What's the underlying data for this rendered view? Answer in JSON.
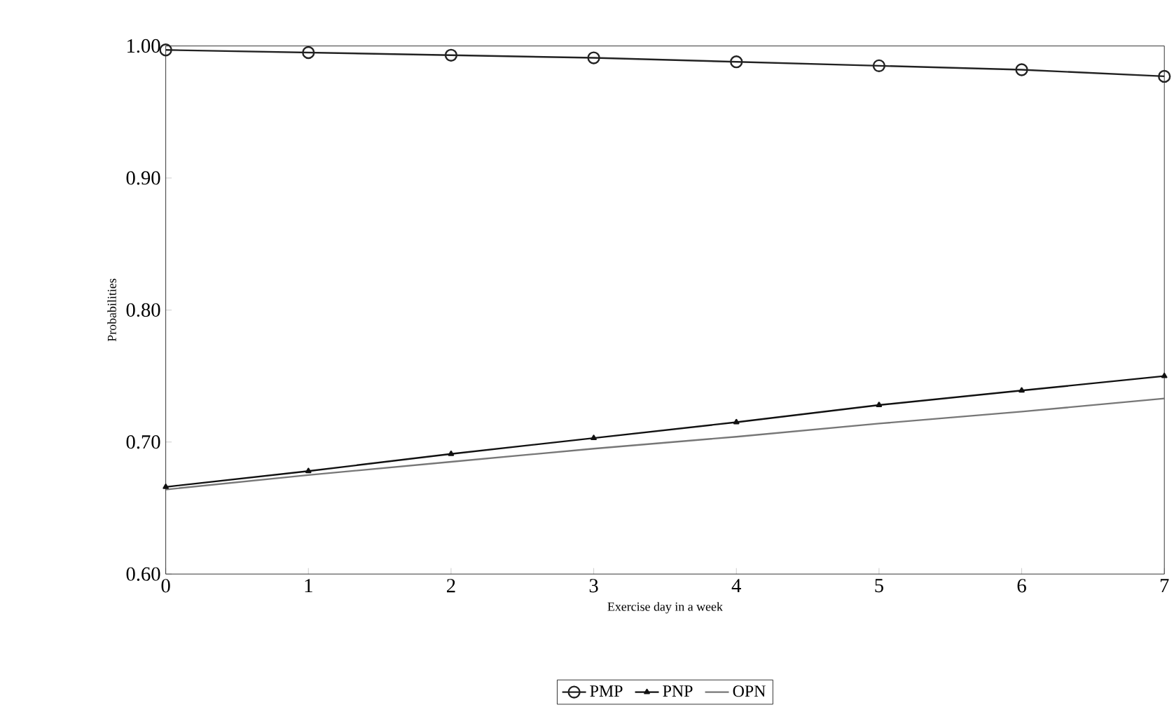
{
  "chart_data": {
    "type": "line",
    "xlabel": "Exercise day in a week",
    "ylabel": "Probabilities",
    "x": [
      0,
      1,
      2,
      3,
      4,
      5,
      6,
      7
    ],
    "series": [
      {
        "name": "PMP",
        "color": "#222222",
        "marker": "circle",
        "values": [
          0.997,
          0.995,
          0.993,
          0.991,
          0.988,
          0.985,
          0.982,
          0.977
        ]
      },
      {
        "name": "PNP",
        "color": "#111111",
        "marker": "triangle",
        "values": [
          0.666,
          0.678,
          0.691,
          0.703,
          0.715,
          0.728,
          0.739,
          0.75
        ]
      },
      {
        "name": "OPN",
        "color": "#777777",
        "marker": "none",
        "values": [
          0.664,
          0.675,
          0.685,
          0.695,
          0.704,
          0.714,
          0.723,
          0.733
        ]
      }
    ],
    "xlim": [
      0,
      7
    ],
    "xticks": [
      0,
      1,
      2,
      3,
      4,
      5,
      6,
      7
    ],
    "ylim": [
      0.6,
      1.0
    ],
    "yticks": [
      {
        "value": 0.6,
        "label": "0.60"
      },
      {
        "value": 0.7,
        "label": "0.70"
      },
      {
        "value": 0.8,
        "label": "0.80"
      },
      {
        "value": 0.9,
        "label": "0.90"
      },
      {
        "value": 1.0,
        "label": "1.00"
      }
    ],
    "grid": false,
    "legend": "bottom",
    "line_style": "solid"
  }
}
